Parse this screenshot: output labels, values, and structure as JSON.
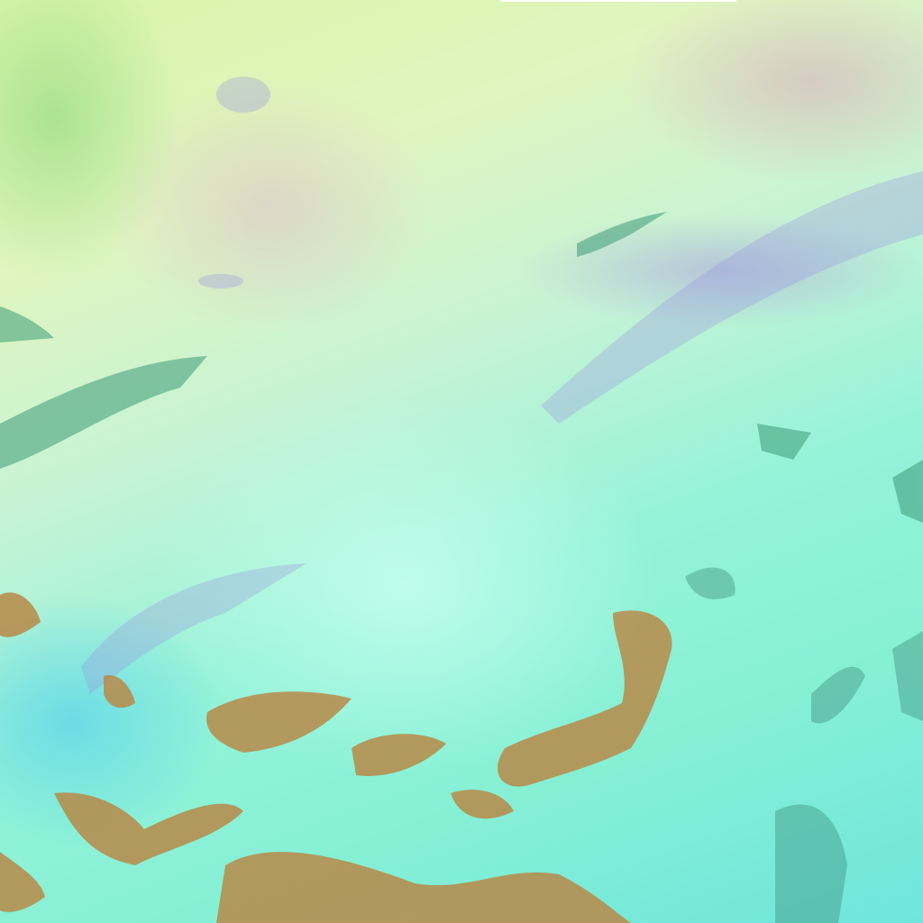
{
  "image": {
    "palette": {
      "cloud": "#c4f7e4",
      "land": "#b88a48",
      "haze": "#d8c0c8",
      "shadow": "#3a8a70",
      "water": "#6fd8e6"
    }
  }
}
